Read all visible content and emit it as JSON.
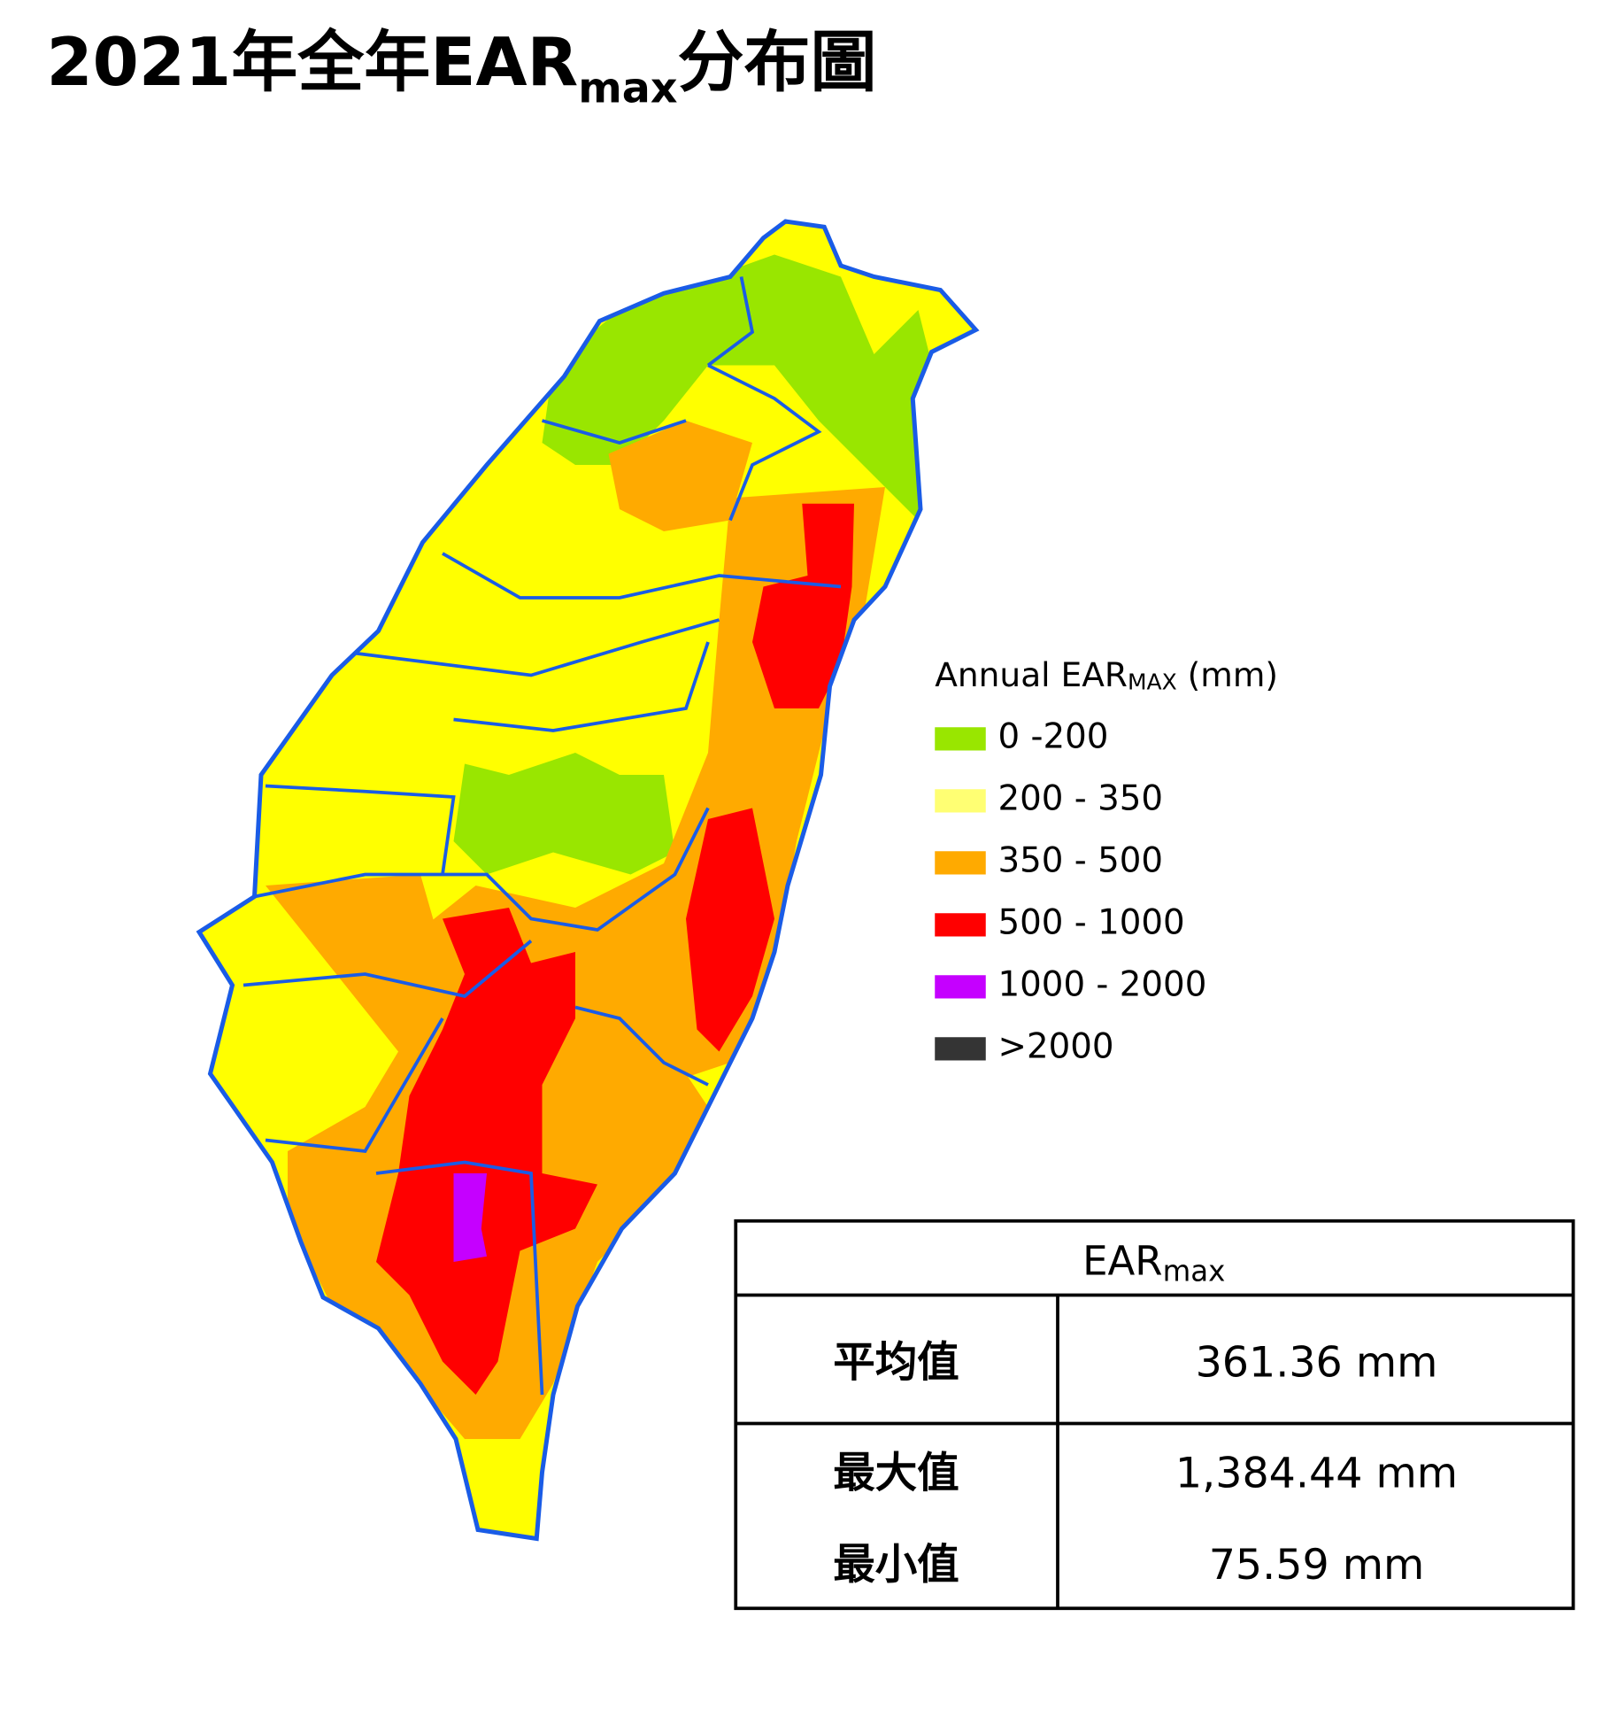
{
  "title": {
    "main": "2021年全年EAR",
    "subscript": "max",
    "suffix": "分布圖"
  },
  "legend": {
    "title": {
      "main": "Annual EAR",
      "subscript": "MAX",
      "suffix": " (mm)"
    },
    "items": [
      {
        "label": "0 -200",
        "color": "#99e600"
      },
      {
        "label": "200 - 350",
        "color": "#ffff73"
      },
      {
        "label": "350 - 500",
        "color": "#ffaa00"
      },
      {
        "label": "500 - 1000",
        "color": "#ff0000"
      },
      {
        "label": "1000 - 2000",
        "color": "#c500ff"
      },
      {
        "label": ">2000",
        "color": "#343434"
      }
    ]
  },
  "table": {
    "header": {
      "main": "EAR",
      "subscript": "max"
    },
    "rows": [
      {
        "label": "平均值",
        "value": "361.36 mm"
      },
      {
        "label": "最大值",
        "value": "1,384.44 mm"
      },
      {
        "label": "最小值",
        "value": "75.59 mm"
      }
    ]
  }
}
